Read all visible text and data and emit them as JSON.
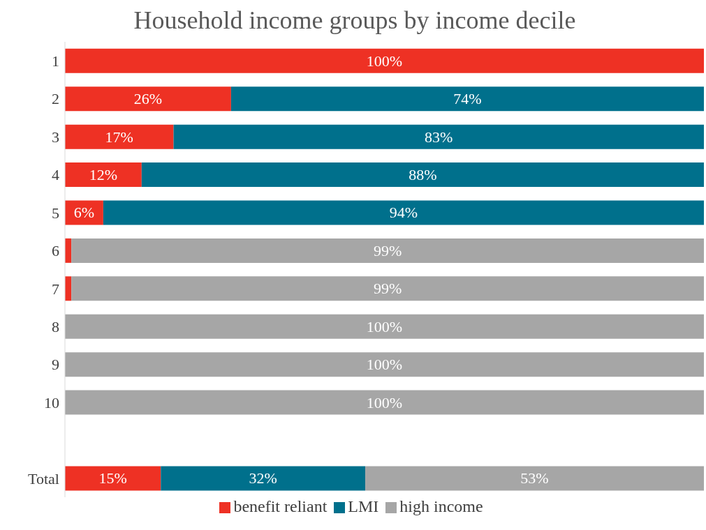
{
  "chart_data": {
    "type": "bar",
    "title": "Household income groups by income decile",
    "orientation": "horizontal",
    "stacked": true,
    "xlim": [
      0,
      100
    ],
    "tick_labels": "y",
    "legend": "bottom",
    "categories": [
      "1",
      "2",
      "3",
      "4",
      "5",
      "6",
      "7",
      "8",
      "9",
      "10",
      null,
      "Total"
    ],
    "series": [
      {
        "name": "benefit reliant",
        "color": "#ee3124",
        "values": [
          100,
          26,
          17,
          12,
          6,
          1,
          1,
          0,
          0,
          0,
          null,
          15
        ],
        "value_labels": [
          "100%",
          "26%",
          "17%",
          "12%",
          "6%",
          null,
          null,
          null,
          null,
          null,
          null,
          "15%"
        ]
      },
      {
        "name": "LMI",
        "color": "#00708c",
        "values": [
          0,
          74,
          83,
          88,
          94,
          0,
          0,
          0,
          0,
          0,
          null,
          32
        ],
        "value_labels": [
          null,
          "74%",
          "83%",
          "88%",
          "94%",
          null,
          null,
          null,
          null,
          null,
          null,
          "32%"
        ]
      },
      {
        "name": "high income",
        "color": "#a6a6a6",
        "values": [
          0,
          0,
          0,
          0,
          0,
          99,
          99,
          100,
          100,
          100,
          null,
          53
        ],
        "value_labels": [
          null,
          null,
          null,
          null,
          null,
          "99%",
          "99%",
          "100%",
          "100%",
          "100%",
          null,
          "53%"
        ]
      }
    ]
  }
}
